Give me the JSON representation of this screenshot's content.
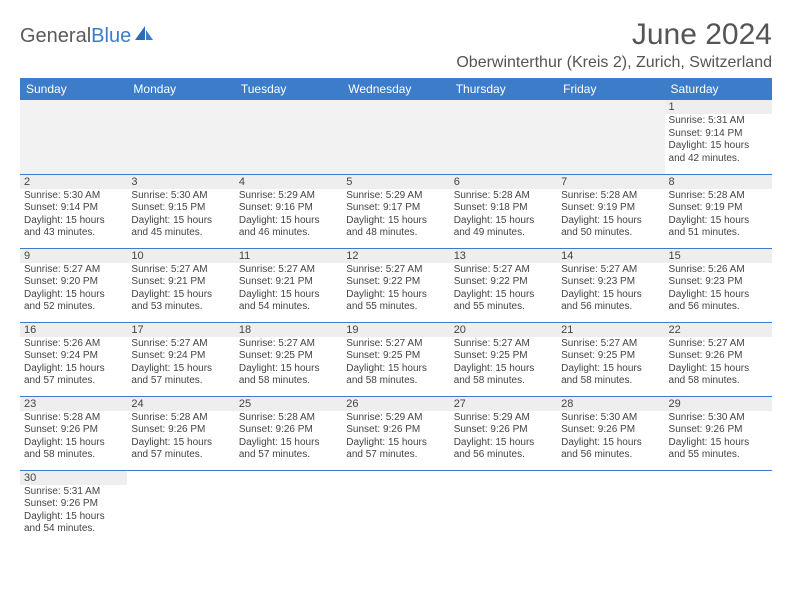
{
  "colors": {
    "header_bg": "#3d7cc9",
    "header_text": "#ffffff",
    "daynum_bg": "#eeeeee",
    "blank_bg": "#f2f2f2",
    "border": "#3d7cc9",
    "text": "#444444",
    "title": "#555555"
  },
  "logo": {
    "general": "General",
    "blue": "Blue"
  },
  "title": "June 2024",
  "location": "Oberwinterthur (Kreis 2), Zurich, Switzerland",
  "weekdays": [
    "Sunday",
    "Monday",
    "Tuesday",
    "Wednesday",
    "Thursday",
    "Friday",
    "Saturday"
  ],
  "first_weekday_index": 6,
  "days": [
    {
      "n": 1,
      "sunrise": "5:31 AM",
      "sunset": "9:14 PM",
      "day_h": 15,
      "day_m": 42
    },
    {
      "n": 2,
      "sunrise": "5:30 AM",
      "sunset": "9:14 PM",
      "day_h": 15,
      "day_m": 43
    },
    {
      "n": 3,
      "sunrise": "5:30 AM",
      "sunset": "9:15 PM",
      "day_h": 15,
      "day_m": 45
    },
    {
      "n": 4,
      "sunrise": "5:29 AM",
      "sunset": "9:16 PM",
      "day_h": 15,
      "day_m": 46
    },
    {
      "n": 5,
      "sunrise": "5:29 AM",
      "sunset": "9:17 PM",
      "day_h": 15,
      "day_m": 48
    },
    {
      "n": 6,
      "sunrise": "5:28 AM",
      "sunset": "9:18 PM",
      "day_h": 15,
      "day_m": 49
    },
    {
      "n": 7,
      "sunrise": "5:28 AM",
      "sunset": "9:19 PM",
      "day_h": 15,
      "day_m": 50
    },
    {
      "n": 8,
      "sunrise": "5:28 AM",
      "sunset": "9:19 PM",
      "day_h": 15,
      "day_m": 51
    },
    {
      "n": 9,
      "sunrise": "5:27 AM",
      "sunset": "9:20 PM",
      "day_h": 15,
      "day_m": 52
    },
    {
      "n": 10,
      "sunrise": "5:27 AM",
      "sunset": "9:21 PM",
      "day_h": 15,
      "day_m": 53
    },
    {
      "n": 11,
      "sunrise": "5:27 AM",
      "sunset": "9:21 PM",
      "day_h": 15,
      "day_m": 54
    },
    {
      "n": 12,
      "sunrise": "5:27 AM",
      "sunset": "9:22 PM",
      "day_h": 15,
      "day_m": 55
    },
    {
      "n": 13,
      "sunrise": "5:27 AM",
      "sunset": "9:22 PM",
      "day_h": 15,
      "day_m": 55
    },
    {
      "n": 14,
      "sunrise": "5:27 AM",
      "sunset": "9:23 PM",
      "day_h": 15,
      "day_m": 56
    },
    {
      "n": 15,
      "sunrise": "5:26 AM",
      "sunset": "9:23 PM",
      "day_h": 15,
      "day_m": 56
    },
    {
      "n": 16,
      "sunrise": "5:26 AM",
      "sunset": "9:24 PM",
      "day_h": 15,
      "day_m": 57
    },
    {
      "n": 17,
      "sunrise": "5:27 AM",
      "sunset": "9:24 PM",
      "day_h": 15,
      "day_m": 57
    },
    {
      "n": 18,
      "sunrise": "5:27 AM",
      "sunset": "9:25 PM",
      "day_h": 15,
      "day_m": 58
    },
    {
      "n": 19,
      "sunrise": "5:27 AM",
      "sunset": "9:25 PM",
      "day_h": 15,
      "day_m": 58
    },
    {
      "n": 20,
      "sunrise": "5:27 AM",
      "sunset": "9:25 PM",
      "day_h": 15,
      "day_m": 58
    },
    {
      "n": 21,
      "sunrise": "5:27 AM",
      "sunset": "9:25 PM",
      "day_h": 15,
      "day_m": 58
    },
    {
      "n": 22,
      "sunrise": "5:27 AM",
      "sunset": "9:26 PM",
      "day_h": 15,
      "day_m": 58
    },
    {
      "n": 23,
      "sunrise": "5:28 AM",
      "sunset": "9:26 PM",
      "day_h": 15,
      "day_m": 58
    },
    {
      "n": 24,
      "sunrise": "5:28 AM",
      "sunset": "9:26 PM",
      "day_h": 15,
      "day_m": 57
    },
    {
      "n": 25,
      "sunrise": "5:28 AM",
      "sunset": "9:26 PM",
      "day_h": 15,
      "day_m": 57
    },
    {
      "n": 26,
      "sunrise": "5:29 AM",
      "sunset": "9:26 PM",
      "day_h": 15,
      "day_m": 57
    },
    {
      "n": 27,
      "sunrise": "5:29 AM",
      "sunset": "9:26 PM",
      "day_h": 15,
      "day_m": 56
    },
    {
      "n": 28,
      "sunrise": "5:30 AM",
      "sunset": "9:26 PM",
      "day_h": 15,
      "day_m": 56
    },
    {
      "n": 29,
      "sunrise": "5:30 AM",
      "sunset": "9:26 PM",
      "day_h": 15,
      "day_m": 55
    },
    {
      "n": 30,
      "sunrise": "5:31 AM",
      "sunset": "9:26 PM",
      "day_h": 15,
      "day_m": 54
    }
  ],
  "labels": {
    "sunrise": "Sunrise:",
    "sunset": "Sunset:",
    "daylight": "Daylight:",
    "hours_word": "hours",
    "and_word": "and",
    "min_word": "minutes."
  },
  "typography": {
    "title_pt": 30,
    "location_pt": 16,
    "weekday_pt": 12,
    "daynum_pt": 11,
    "body_pt": 10
  }
}
